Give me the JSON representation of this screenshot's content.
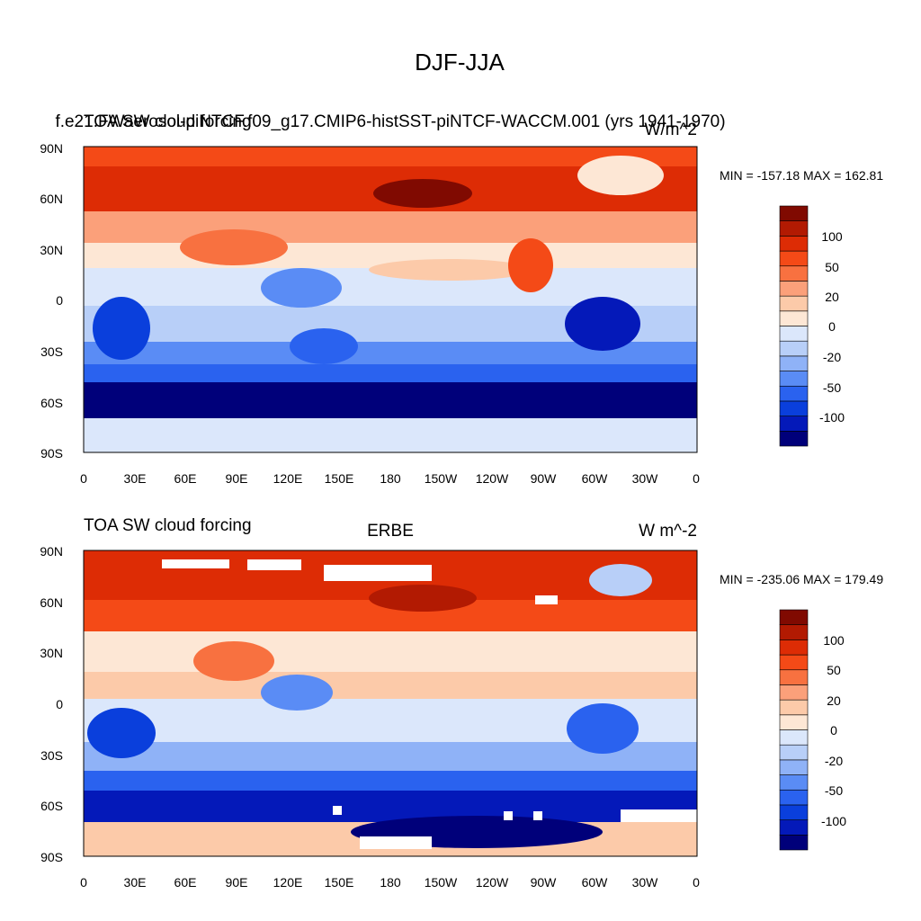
{
  "figure_title": "DJF-JJA",
  "chart_data": [
    {
      "type": "heatmap",
      "title": "f.e21.FWaerosol-piNTCF.f09_g17.CMIP6-histSST-piNTCF-WACCM.001 (yrs 1941-1970)",
      "left_title": "TOA SW cloud forcing",
      "right_title": "W/m^2",
      "min_max": "MIN = -157.18 MAX = 162.81",
      "xlabel": "",
      "ylabel": "",
      "x_ticks": [
        "0",
        "30E",
        "60E",
        "90E",
        "120E",
        "150E",
        "180",
        "150W",
        "120W",
        "90W",
        "60W",
        "30W",
        "0"
      ],
      "y_ticks": [
        "90N",
        "60N",
        "30N",
        "0",
        "30S",
        "60S",
        "90S"
      ],
      "xlim": [
        0,
        360
      ],
      "ylim": [
        -90,
        90
      ],
      "colorbar_labels": [
        "100",
        "50",
        "20",
        "0",
        "-20",
        "-50",
        "-100"
      ],
      "colorbar_levels": [
        -150,
        -125,
        -100,
        -75,
        -50,
        -35,
        -20,
        -10,
        0,
        10,
        20,
        35,
        50,
        75,
        100,
        125,
        150
      ]
    },
    {
      "type": "heatmap",
      "title": "ERBE",
      "left_title": "TOA SW cloud forcing",
      "right_title": "W m^-2",
      "min_max": "MIN = -235.06 MAX = 179.49",
      "xlabel": "",
      "ylabel": "",
      "x_ticks": [
        "0",
        "30E",
        "60E",
        "90E",
        "120E",
        "150E",
        "180",
        "150W",
        "120W",
        "90W",
        "60W",
        "30W",
        "0"
      ],
      "y_ticks": [
        "90N",
        "60N",
        "30N",
        "0",
        "30S",
        "60S",
        "90S"
      ],
      "xlim": [
        0,
        360
      ],
      "ylim": [
        -90,
        90
      ],
      "colorbar_labels": [
        "100",
        "50",
        "20",
        "0",
        "-20",
        "-50",
        "-100"
      ],
      "colorbar_levels": [
        -150,
        -125,
        -100,
        -75,
        -50,
        -35,
        -20,
        -10,
        0,
        10,
        20,
        35,
        50,
        75,
        100,
        125,
        150
      ]
    }
  ],
  "colorbar_colors": [
    "#00007a",
    "#0419b9",
    "#0a3fdc",
    "#2a62ef",
    "#5a8cf5",
    "#8fb2f7",
    "#b8cff8",
    "#dbe7fb",
    "#fde7d5",
    "#fccaa9",
    "#fba07a",
    "#f87140",
    "#f44a17",
    "#dd2c05",
    "#b21a02",
    "#800a01"
  ]
}
